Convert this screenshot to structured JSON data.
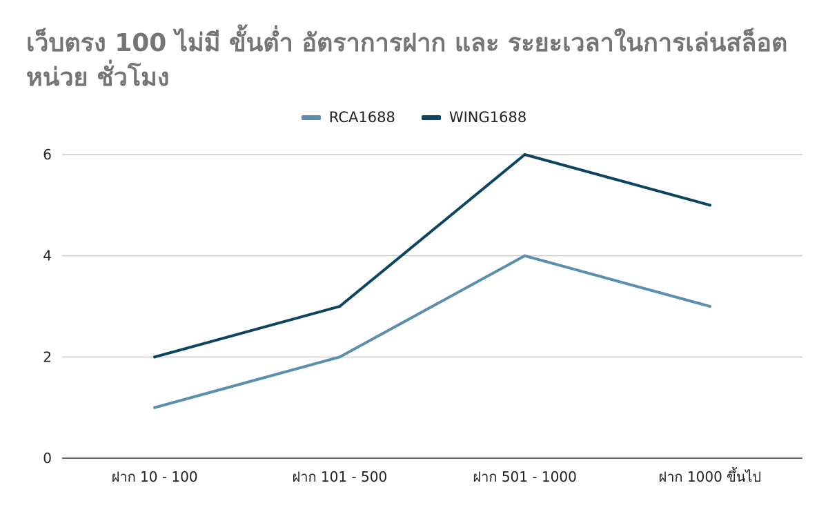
{
  "chart_data": {
    "type": "line",
    "title": "เว็บตรง 100 ไม่มี ขั้นต่ำ อัตราการฝาก และ ระยะเวลาในการเล่นสล็อต หน่วย ชั่วโมง",
    "categories": [
      "ฝาก 10 - 100",
      "ฝาก 101 - 500",
      "ฝาก 501 - 1000",
      "ฝาก 1000 ขึ้นไป"
    ],
    "series": [
      {
        "name": "RCA1688",
        "values": [
          1,
          2,
          4,
          3
        ],
        "color": "#5b8fad"
      },
      {
        "name": "WING1688",
        "values": [
          2,
          3,
          6,
          5
        ],
        "color": "#0b4560"
      }
    ],
    "ylim": [
      0,
      6
    ],
    "yticks": [
      "0",
      "2",
      "4",
      "6"
    ],
    "grid": true,
    "legend_position": "top-center",
    "xlabel": "",
    "ylabel": ""
  }
}
